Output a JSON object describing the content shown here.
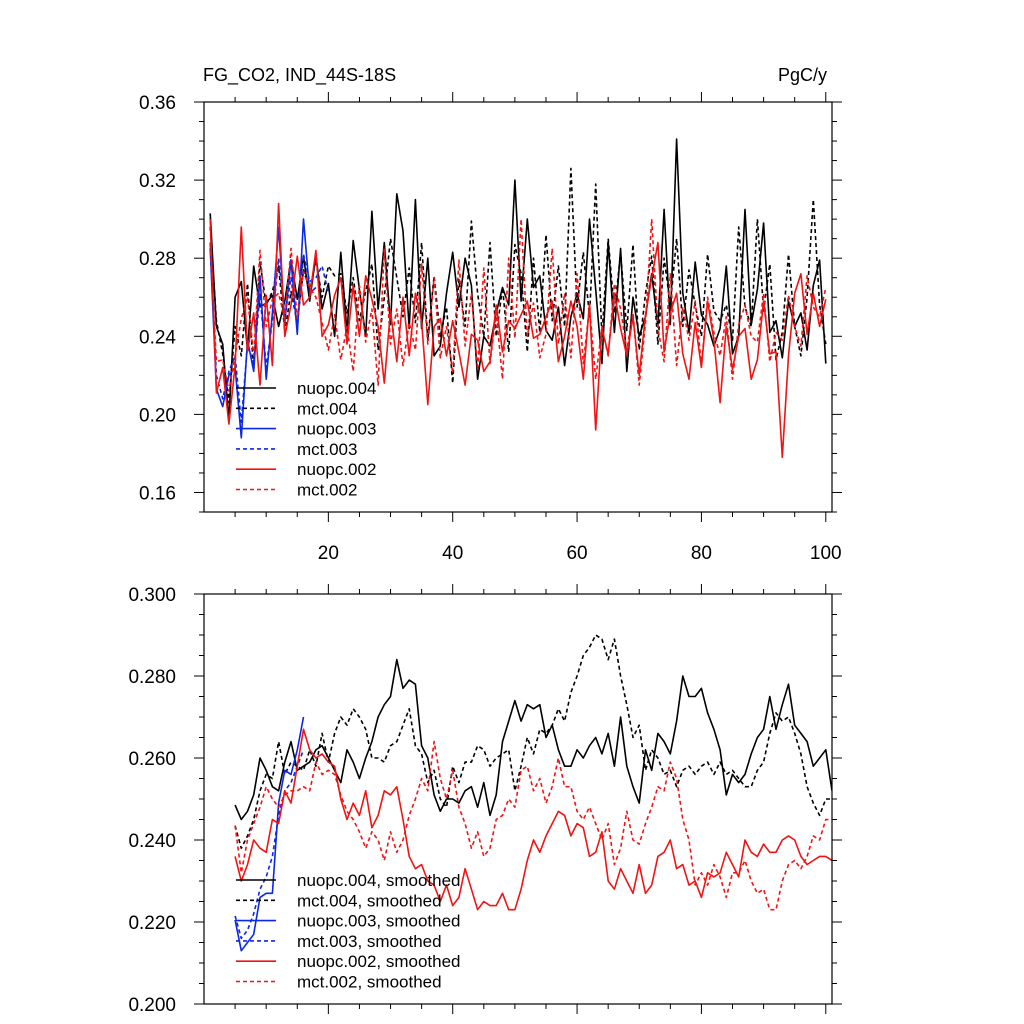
{
  "header": {
    "left": "FG_CO2, IND_44S-18S",
    "right": "PgC/y"
  },
  "colors": {
    "nuopc.004": "#000000",
    "mct.004": "#000000",
    "nuopc.003": "#0a28e6",
    "mct.003": "#0a28e6",
    "nuopc.002": "#f01414",
    "mct.002": "#f01414"
  },
  "chart_data": [
    {
      "type": "line",
      "title": "FG_CO2, IND_44S-18S",
      "units": "PgC/y",
      "xlim": [
        0,
        101
      ],
      "ylim": [
        0.15,
        0.36
      ],
      "xticks": [
        20,
        40,
        60,
        80,
        100
      ],
      "yticks": [
        0.16,
        0.2,
        0.24,
        0.28,
        0.32,
        0.36
      ],
      "ytick_labels": [
        "0.16",
        "0.20",
        "0.24",
        "0.28",
        "0.32",
        "0.36"
      ],
      "legend": [
        "nuopc.004",
        "mct.004",
        "nuopc.003",
        "mct.003",
        "nuopc.002",
        "mct.002"
      ],
      "legend_position": "lower-left",
      "series": [
        {
          "name": "nuopc.004",
          "color": "#000000",
          "dash": "solid",
          "x_start": 1,
          "values": [
            0.303,
            0.245,
            0.236,
            0.197,
            0.26,
            0.268,
            0.233,
            0.276,
            0.255,
            0.257,
            0.261,
            0.245,
            0.258,
            0.279,
            0.259,
            0.281,
            0.258,
            0.282,
            0.254,
            0.267,
            0.24,
            0.283,
            0.242,
            0.289,
            0.264,
            0.24,
            0.304,
            0.254,
            0.288,
            0.246,
            0.313,
            0.294,
            0.244,
            0.31,
            0.244,
            0.28,
            0.23,
            0.235,
            0.262,
            0.283,
            0.255,
            0.28,
            0.266,
            0.218,
            0.24,
            0.235,
            0.252,
            0.265,
            0.256,
            0.32,
            0.258,
            0.3,
            0.265,
            0.271,
            0.243,
            0.238,
            0.255,
            0.225,
            0.25,
            0.262,
            0.249,
            0.3,
            0.264,
            0.226,
            0.288,
            0.242,
            0.285,
            0.222,
            0.26,
            0.24,
            0.25,
            0.272,
            0.245,
            0.305,
            0.246,
            0.341,
            0.262,
            0.242,
            0.278,
            0.251,
            0.246,
            0.235,
            0.244,
            0.276,
            0.231,
            0.24,
            0.305,
            0.246,
            0.264,
            0.298,
            0.242,
            0.248,
            0.229,
            0.258,
            0.245,
            0.252,
            0.233,
            0.266,
            0.279,
            0.226
          ]
        },
        {
          "name": "mct.004",
          "color": "#000000",
          "dash": "dashed",
          "x_start": 1,
          "values": [
            0.296,
            0.248,
            0.231,
            0.206,
            0.245,
            0.23,
            0.267,
            0.223,
            0.278,
            0.256,
            0.263,
            0.276,
            0.242,
            0.263,
            0.247,
            0.274,
            0.263,
            0.279,
            0.26,
            0.276,
            0.271,
            0.272,
            0.252,
            0.27,
            0.248,
            0.263,
            0.277,
            0.233,
            0.26,
            0.29,
            0.27,
            0.25,
            0.275,
            0.247,
            0.288,
            0.238,
            0.271,
            0.24,
            0.255,
            0.216,
            0.269,
            0.245,
            0.299,
            0.262,
            0.24,
            0.288,
            0.24,
            0.265,
            0.232,
            0.287,
            0.272,
            0.232,
            0.28,
            0.242,
            0.292,
            0.248,
            0.276,
            0.245,
            0.326,
            0.255,
            0.283,
            0.25,
            0.318,
            0.24,
            0.29,
            0.252,
            0.283,
            0.243,
            0.287,
            0.233,
            0.262,
            0.281,
            0.236,
            0.28,
            0.256,
            0.29,
            0.245,
            0.274,
            0.256,
            0.24,
            0.282,
            0.253,
            0.248,
            0.256,
            0.238,
            0.296,
            0.255,
            0.245,
            0.3,
            0.253,
            0.277,
            0.228,
            0.242,
            0.282,
            0.245,
            0.23,
            0.26,
            0.31,
            0.256,
            0.236
          ]
        },
        {
          "name": "nuopc.003",
          "color": "#0a28e6",
          "dash": "solid",
          "x_start": 1,
          "values": [
            0.285,
            0.213,
            0.204,
            0.22,
            0.224,
            0.188,
            0.238,
            0.222,
            0.271,
            0.218,
            0.252,
            0.296,
            0.247,
            0.279,
            0.241,
            0.3,
            0.262,
            0.265
          ]
        },
        {
          "name": "mct.003",
          "color": "#0a28e6",
          "dash": "dashed",
          "x_start": 1,
          "values": [
            0.288,
            0.22,
            0.208,
            0.222,
            0.23,
            0.196,
            0.236,
            0.226,
            0.262,
            0.224,
            0.248,
            0.28,
            0.25,
            0.27,
            0.244,
            0.282,
            0.268,
            0.27,
            0.276,
            0.262
          ]
        },
        {
          "name": "nuopc.002",
          "color": "#f01414",
          "dash": "solid",
          "x_start": 1,
          "values": [
            0.3,
            0.211,
            0.224,
            0.195,
            0.225,
            0.296,
            0.232,
            0.252,
            0.215,
            0.261,
            0.225,
            0.308,
            0.24,
            0.256,
            0.281,
            0.256,
            0.26,
            0.284,
            0.24,
            0.246,
            0.261,
            0.27,
            0.236,
            0.266,
            0.24,
            0.271,
            0.259,
            0.245,
            0.216,
            0.253,
            0.227,
            0.26,
            0.23,
            0.262,
            0.248,
            0.205,
            0.245,
            0.249,
            0.23,
            0.248,
            0.232,
            0.215,
            0.241,
            0.238,
            0.222,
            0.227,
            0.256,
            0.232,
            0.248,
            0.244,
            0.251,
            0.258,
            0.239,
            0.241,
            0.25,
            0.258,
            0.227,
            0.24,
            0.258,
            0.245,
            0.218,
            0.257,
            0.192,
            0.244,
            0.231,
            0.262,
            0.244,
            0.23,
            0.25,
            0.22,
            0.251,
            0.27,
            0.288,
            0.232,
            0.252,
            0.262,
            0.231,
            0.218,
            0.247,
            0.224,
            0.258,
            0.238,
            0.206,
            0.245,
            0.223,
            0.24,
            0.244,
            0.218,
            0.228,
            0.258,
            0.231,
            0.232,
            0.178,
            0.23,
            0.262,
            0.272,
            0.241,
            0.262,
            0.245,
            0.259
          ]
        },
        {
          "name": "mct.002",
          "color": "#f01414",
          "dash": "dashed",
          "x_start": 1,
          "values": [
            0.287,
            0.227,
            0.228,
            0.212,
            0.23,
            0.249,
            0.26,
            0.23,
            0.284,
            0.245,
            0.259,
            0.262,
            0.249,
            0.285,
            0.249,
            0.273,
            0.265,
            0.26,
            0.247,
            0.233,
            0.251,
            0.228,
            0.245,
            0.222,
            0.266,
            0.237,
            0.254,
            0.215,
            0.285,
            0.236,
            0.254,
            0.225,
            0.247,
            0.233,
            0.277,
            0.236,
            0.27,
            0.229,
            0.245,
            0.221,
            0.279,
            0.235,
            0.262,
            0.223,
            0.275,
            0.226,
            0.252,
            0.218,
            0.28,
            0.239,
            0.3,
            0.24,
            0.257,
            0.229,
            0.241,
            0.285,
            0.236,
            0.262,
            0.229,
            0.272,
            0.226,
            0.255,
            0.218,
            0.245,
            0.23,
            0.267,
            0.254,
            0.233,
            0.252,
            0.215,
            0.247,
            0.3,
            0.244,
            0.227,
            0.272,
            0.225,
            0.255,
            0.238,
            0.258,
            0.225,
            0.26,
            0.242,
            0.23,
            0.25,
            0.218,
            0.246,
            0.256,
            0.24,
            0.237,
            0.262,
            0.227,
            0.242,
            0.238,
            0.261,
            0.245,
            0.235,
            0.271,
            0.255,
            0.25,
            0.265
          ]
        }
      ]
    },
    {
      "type": "line",
      "xlim": [
        0,
        101
      ],
      "ylim": [
        0.2,
        0.3
      ],
      "xticks": [
        20,
        40,
        60,
        80,
        100
      ],
      "yticks": [
        0.2,
        0.22,
        0.24,
        0.26,
        0.28,
        0.3
      ],
      "ytick_labels": [
        "0.200",
        "0.220",
        "0.240",
        "0.260",
        "0.280",
        "0.300"
      ],
      "legend": [
        "nuopc.004, smoothed",
        "mct.004, smoothed",
        "nuopc.003, smoothed",
        "mct.003, smoothed",
        "nuopc.002, smoothed",
        "mct.002, smoothed"
      ],
      "legend_position": "lower-left",
      "series": [
        {
          "name": "nuopc.004, smoothed",
          "color": "#000000",
          "dash": "solid",
          "x_start": 5,
          "values": [
            0.2485,
            0.245,
            0.247,
            0.251,
            0.26,
            0.257,
            0.253,
            0.252,
            0.259,
            0.264,
            0.257,
            0.258,
            0.259,
            0.262,
            0.263,
            0.26,
            0.257,
            0.254,
            0.262,
            0.259,
            0.255,
            0.26,
            0.264,
            0.27,
            0.273,
            0.275,
            0.284,
            0.277,
            0.279,
            0.278,
            0.263,
            0.26,
            0.251,
            0.247,
            0.25,
            0.25,
            0.249,
            0.252,
            0.253,
            0.248,
            0.254,
            0.246,
            0.251,
            0.264,
            0.269,
            0.274,
            0.269,
            0.273,
            0.272,
            0.273,
            0.265,
            0.268,
            0.262,
            0.258,
            0.258,
            0.262,
            0.26,
            0.263,
            0.265,
            0.261,
            0.266,
            0.258,
            0.27,
            0.258,
            0.253,
            0.249,
            0.262,
            0.257,
            0.266,
            0.264,
            0.261,
            0.269,
            0.28,
            0.275,
            0.275,
            0.277,
            0.271,
            0.267,
            0.262,
            0.251,
            0.256,
            0.254,
            0.256,
            0.261,
            0.265,
            0.267,
            0.275,
            0.267,
            0.273,
            0.278,
            0.268,
            0.266,
            0.264,
            0.258,
            0.26,
            0.262,
            0.252
          ]
        },
        {
          "name": "mct.004, smoothed",
          "color": "#000000",
          "dash": "dashed",
          "x_start": 5,
          "values": [
            0.2435,
            0.238,
            0.241,
            0.245,
            0.252,
            0.256,
            0.255,
            0.264,
            0.256,
            0.259,
            0.258,
            0.257,
            0.262,
            0.258,
            0.266,
            0.259,
            0.266,
            0.27,
            0.268,
            0.272,
            0.27,
            0.267,
            0.26,
            0.26,
            0.259,
            0.263,
            0.264,
            0.268,
            0.272,
            0.263,
            0.261,
            0.254,
            0.257,
            0.25,
            0.248,
            0.258,
            0.254,
            0.259,
            0.259,
            0.263,
            0.262,
            0.258,
            0.26,
            0.261,
            0.262,
            0.252,
            0.258,
            0.265,
            0.261,
            0.267,
            0.266,
            0.268,
            0.272,
            0.269,
            0.276,
            0.28,
            0.285,
            0.287,
            0.29,
            0.289,
            0.284,
            0.289,
            0.28,
            0.273,
            0.265,
            0.268,
            0.257,
            0.262,
            0.26,
            0.256,
            0.257,
            0.253,
            0.257,
            0.258,
            0.256,
            0.258,
            0.259,
            0.256,
            0.259,
            0.256,
            0.257,
            0.255,
            0.253,
            0.253,
            0.257,
            0.259,
            0.266,
            0.271,
            0.269,
            0.27,
            0.266,
            0.261,
            0.253,
            0.249,
            0.246,
            0.25,
            0.25
          ]
        },
        {
          "name": "nuopc.003, smoothed",
          "color": "#0a28e6",
          "dash": "solid",
          "x_start": 5,
          "values": [
            0.2205,
            0.213,
            0.215,
            0.217,
            0.226,
            0.227,
            0.227,
            0.249,
            0.257,
            0.256,
            0.262,
            0.27
          ]
        },
        {
          "name": "mct.003, smoothed",
          "color": "#0a28e6",
          "dash": "dashed",
          "x_start": 5,
          "values": [
            0.2215,
            0.216,
            0.218,
            0.222,
            0.228,
            0.231,
            0.236,
            0.246,
            0.252,
            0.254,
            0.258,
            0.262
          ]
        },
        {
          "name": "nuopc.002, smoothed",
          "color": "#f01414",
          "dash": "solid",
          "x_start": 5,
          "values": [
            0.236,
            0.23,
            0.234,
            0.24,
            0.238,
            0.237,
            0.245,
            0.244,
            0.252,
            0.249,
            0.258,
            0.267,
            0.262,
            0.26,
            0.261,
            0.259,
            0.258,
            0.25,
            0.245,
            0.249,
            0.246,
            0.252,
            0.243,
            0.246,
            0.252,
            0.251,
            0.253,
            0.245,
            0.236,
            0.233,
            0.234,
            0.23,
            0.229,
            0.225,
            0.229,
            0.224,
            0.226,
            0.233,
            0.228,
            0.223,
            0.225,
            0.224,
            0.224,
            0.227,
            0.223,
            0.223,
            0.228,
            0.235,
            0.24,
            0.237,
            0.241,
            0.244,
            0.247,
            0.246,
            0.241,
            0.244,
            0.243,
            0.236,
            0.237,
            0.242,
            0.23,
            0.228,
            0.233,
            0.23,
            0.227,
            0.234,
            0.227,
            0.229,
            0.236,
            0.237,
            0.24,
            0.233,
            0.234,
            0.229,
            0.23,
            0.226,
            0.232,
            0.231,
            0.232,
            0.237,
            0.234,
            0.231,
            0.24,
            0.237,
            0.236,
            0.239,
            0.237,
            0.237,
            0.24,
            0.241,
            0.24,
            0.236,
            0.234,
            0.235,
            0.236,
            0.236,
            0.235
          ]
        },
        {
          "name": "mct.002, smoothed",
          "color": "#f01414",
          "dash": "dashed",
          "x_start": 5,
          "values": [
            0.2435,
            0.232,
            0.24,
            0.244,
            0.248,
            0.253,
            0.25,
            0.248,
            0.251,
            0.252,
            0.252,
            0.253,
            0.252,
            0.259,
            0.256,
            0.257,
            0.256,
            0.251,
            0.247,
            0.245,
            0.242,
            0.238,
            0.242,
            0.24,
            0.235,
            0.242,
            0.237,
            0.24,
            0.246,
            0.25,
            0.255,
            0.252,
            0.264,
            0.255,
            0.25,
            0.257,
            0.248,
            0.244,
            0.238,
            0.242,
            0.236,
            0.238,
            0.245,
            0.246,
            0.25,
            0.248,
            0.257,
            0.258,
            0.252,
            0.255,
            0.249,
            0.253,
            0.26,
            0.253,
            0.253,
            0.247,
            0.245,
            0.248,
            0.244,
            0.24,
            0.244,
            0.234,
            0.238,
            0.247,
            0.24,
            0.239,
            0.244,
            0.248,
            0.253,
            0.252,
            0.259,
            0.255,
            0.245,
            0.24,
            0.229,
            0.232,
            0.229,
            0.234,
            0.231,
            0.226,
            0.232,
            0.232,
            0.235,
            0.23,
            0.227,
            0.228,
            0.223,
            0.223,
            0.23,
            0.234,
            0.235,
            0.233,
            0.236,
            0.241,
            0.24,
            0.245,
            0.245
          ]
        }
      ]
    }
  ]
}
